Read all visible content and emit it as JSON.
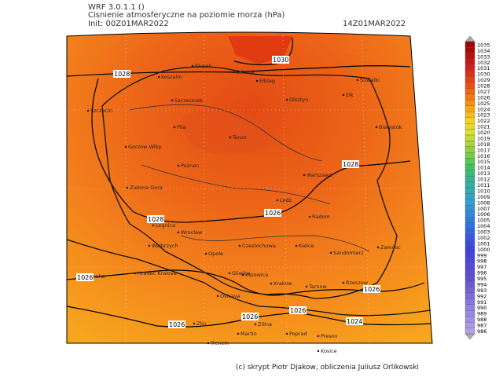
{
  "header": {
    "model": "WRF 3.0.1.1 ()",
    "title": "Cisnienie atmosferyczne na poziomie morza (hPa)",
    "init": "Init: 00Z01MAR2022",
    "valid_time": "14Z01MAR2022"
  },
  "map": {
    "cities": [
      "Slupsk",
      "Gdansk",
      "Elblag",
      "Koszalin",
      "Szczecinek",
      "Olsztyn",
      "Elk",
      "Suwalki",
      "Szczecin",
      "Pila",
      "Torun",
      "Bialystok",
      "Gorzow Wlkp",
      "Poznan",
      "Warszawa",
      "Zielona Gora",
      "Lodz",
      "Radom",
      "Legnica",
      "Wroclaw",
      "Walbrzych",
      "Czestochowa",
      "Kielce",
      "Zamosc",
      "Sandomierz",
      "Opole",
      "Hradec Kralove",
      "Praha",
      "Gliwice",
      "Katowice",
      "Krakow",
      "Rzeszow",
      "Tarnow",
      "Ostrava",
      "Zlin",
      "Zilina",
      "Trencin",
      "Martin",
      "Poprad",
      "Presov",
      "Kosice"
    ],
    "isobar_labels": [
      "1030",
      "1028",
      "1028",
      "1028",
      "1026",
      "1026",
      "1026",
      "1026",
      "1026",
      "1026",
      "1024"
    ]
  },
  "colorbar": {
    "labels": [
      "1035",
      "1034",
      "1033",
      "1032",
      "1031",
      "1030",
      "1029",
      "1028",
      "1027",
      "1026",
      "1025",
      "1024",
      "1023",
      "1022",
      "1021",
      "1020",
      "1019",
      "1018",
      "1017",
      "1016",
      "1015",
      "1014",
      "1013",
      "1012",
      "1011",
      "1010",
      "1009",
      "1008",
      "1007",
      "1006",
      "1005",
      "1004",
      "1003",
      "1002",
      "1001",
      "1000",
      "999",
      "998",
      "997",
      "996",
      "995",
      "994",
      "993",
      "992",
      "991",
      "990",
      "989",
      "988",
      "987",
      "986"
    ]
  },
  "footer": {
    "credit": "(c) skrypt Piotr Djakow, obliczenia Juliusz Orlikowski"
  }
}
